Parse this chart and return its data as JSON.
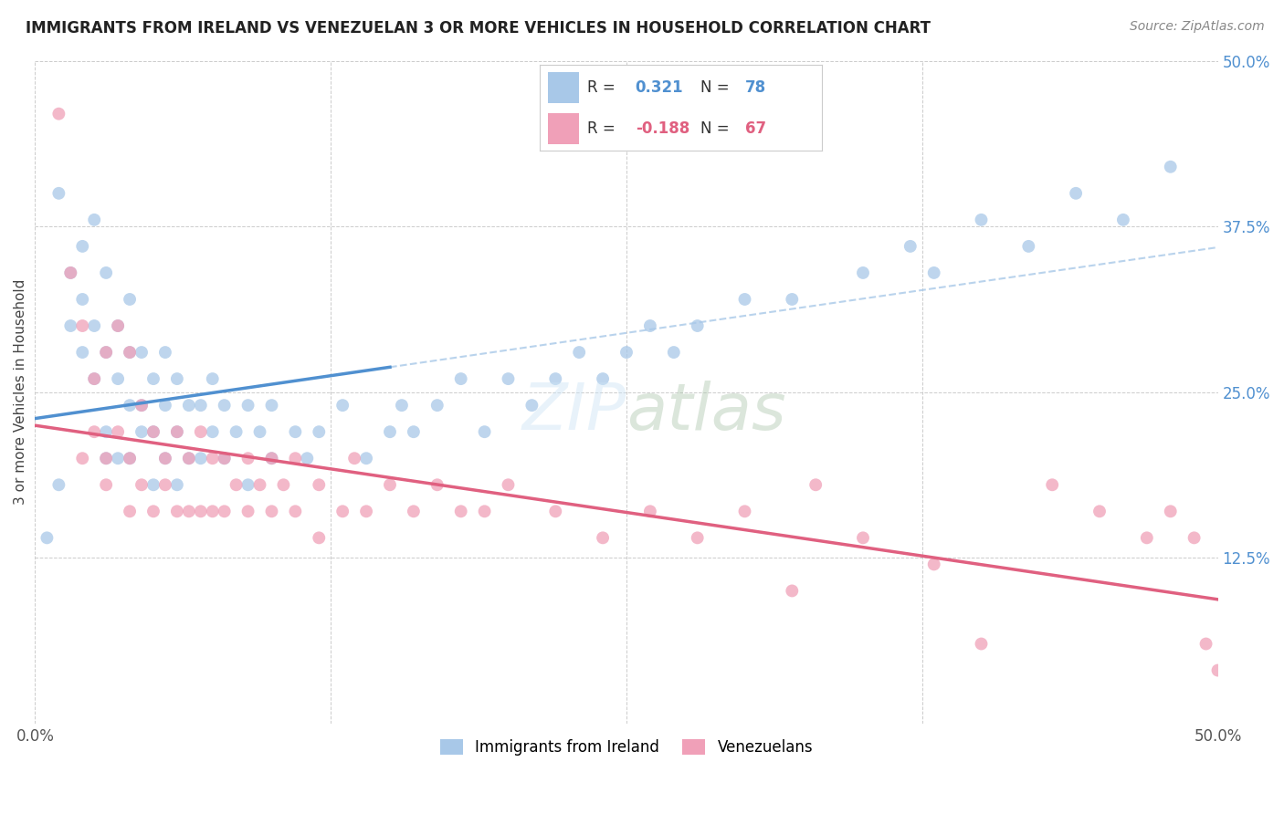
{
  "title": "IMMIGRANTS FROM IRELAND VS VENEZUELAN 3 OR MORE VEHICLES IN HOUSEHOLD CORRELATION CHART",
  "source": "Source: ZipAtlas.com",
  "ylabel": "3 or more Vehicles in Household",
  "legend_labels": [
    "Immigrants from Ireland",
    "Venezuelans"
  ],
  "r_ireland": 0.321,
  "n_ireland": 78,
  "r_venezuela": -0.188,
  "n_venezuela": 67,
  "blue_color": "#a8c8e8",
  "pink_color": "#f0a0b8",
  "blue_line_color": "#5090d0",
  "pink_line_color": "#e06080",
  "ireland_x": [
    0.5,
    1.0,
    1.0,
    1.5,
    1.5,
    2.0,
    2.0,
    2.0,
    2.5,
    2.5,
    2.5,
    3.0,
    3.0,
    3.0,
    3.0,
    3.5,
    3.5,
    3.5,
    4.0,
    4.0,
    4.0,
    4.0,
    4.5,
    4.5,
    4.5,
    5.0,
    5.0,
    5.0,
    5.5,
    5.5,
    5.5,
    6.0,
    6.0,
    6.0,
    6.5,
    6.5,
    7.0,
    7.0,
    7.5,
    7.5,
    8.0,
    8.0,
    8.5,
    9.0,
    9.0,
    9.5,
    10.0,
    10.0,
    11.0,
    11.5,
    12.0,
    13.0,
    14.0,
    15.0,
    15.5,
    16.0,
    17.0,
    18.0,
    19.0,
    20.0,
    21.0,
    22.0,
    23.0,
    24.0,
    25.0,
    26.0,
    27.0,
    28.0,
    30.0,
    32.0,
    35.0,
    37.0,
    38.0,
    40.0,
    42.0,
    44.0,
    46.0,
    48.0
  ],
  "ireland_y": [
    14.0,
    40.0,
    18.0,
    30.0,
    34.0,
    32.0,
    28.0,
    36.0,
    38.0,
    30.0,
    26.0,
    34.0,
    28.0,
    22.0,
    20.0,
    30.0,
    26.0,
    20.0,
    32.0,
    28.0,
    24.0,
    20.0,
    28.0,
    24.0,
    22.0,
    26.0,
    22.0,
    18.0,
    28.0,
    24.0,
    20.0,
    26.0,
    22.0,
    18.0,
    24.0,
    20.0,
    24.0,
    20.0,
    26.0,
    22.0,
    24.0,
    20.0,
    22.0,
    24.0,
    18.0,
    22.0,
    24.0,
    20.0,
    22.0,
    20.0,
    22.0,
    24.0,
    20.0,
    22.0,
    24.0,
    22.0,
    24.0,
    26.0,
    22.0,
    26.0,
    24.0,
    26.0,
    28.0,
    26.0,
    28.0,
    30.0,
    28.0,
    30.0,
    32.0,
    32.0,
    34.0,
    36.0,
    34.0,
    38.0,
    36.0,
    40.0,
    38.0,
    42.0
  ],
  "venezuela_x": [
    1.0,
    1.5,
    2.0,
    2.0,
    2.5,
    2.5,
    3.0,
    3.0,
    3.0,
    3.5,
    3.5,
    4.0,
    4.0,
    4.0,
    4.5,
    4.5,
    5.0,
    5.0,
    5.5,
    5.5,
    6.0,
    6.0,
    6.5,
    6.5,
    7.0,
    7.0,
    7.5,
    7.5,
    8.0,
    8.0,
    8.5,
    9.0,
    9.0,
    9.5,
    10.0,
    10.0,
    10.5,
    11.0,
    11.0,
    12.0,
    12.0,
    13.0,
    13.5,
    14.0,
    15.0,
    16.0,
    17.0,
    18.0,
    19.0,
    20.0,
    22.0,
    24.0,
    26.0,
    28.0,
    30.0,
    32.0,
    33.0,
    35.0,
    38.0,
    40.0,
    43.0,
    45.0,
    47.0,
    48.0,
    49.0,
    49.5,
    50.0
  ],
  "venezuela_y": [
    46.0,
    34.0,
    30.0,
    20.0,
    26.0,
    22.0,
    28.0,
    20.0,
    18.0,
    30.0,
    22.0,
    28.0,
    20.0,
    16.0,
    24.0,
    18.0,
    22.0,
    16.0,
    20.0,
    18.0,
    22.0,
    16.0,
    20.0,
    16.0,
    22.0,
    16.0,
    20.0,
    16.0,
    20.0,
    16.0,
    18.0,
    20.0,
    16.0,
    18.0,
    20.0,
    16.0,
    18.0,
    20.0,
    16.0,
    18.0,
    14.0,
    16.0,
    20.0,
    16.0,
    18.0,
    16.0,
    18.0,
    16.0,
    16.0,
    18.0,
    16.0,
    14.0,
    16.0,
    14.0,
    16.0,
    10.0,
    18.0,
    14.0,
    12.0,
    6.0,
    18.0,
    16.0,
    14.0,
    16.0,
    14.0,
    6.0,
    4.0
  ]
}
